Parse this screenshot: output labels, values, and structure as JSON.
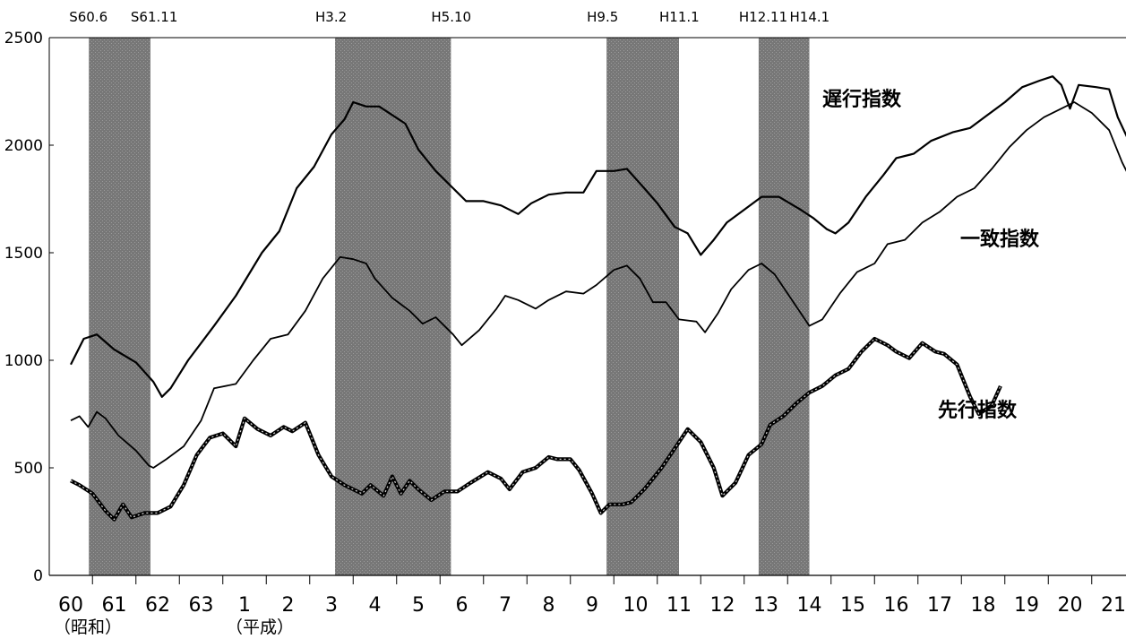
{
  "chart_data": {
    "type": "line",
    "y_ticks": [
      "0",
      "500",
      "1000",
      "1500",
      "2000",
      "2500"
    ],
    "ylim": [
      0,
      2500
    ],
    "x_ticks": [
      "60",
      "61",
      "62",
      "63",
      "1",
      "2",
      "3",
      "4",
      "5",
      "6",
      "7",
      "8",
      "9",
      "10",
      "11",
      "12",
      "13",
      "14",
      "15",
      "16",
      "17",
      "18",
      "19",
      "20",
      "21"
    ],
    "era_labels": [
      "（昭和）",
      "（平成）"
    ],
    "recessions": [
      {
        "start": "S60.6",
        "end": "S61.11"
      },
      {
        "start": "H3.2",
        "end": "H5.10"
      },
      {
        "start": "H9.5",
        "end": "H11.1"
      },
      {
        "start": "H12.11",
        "end": "H14.1"
      }
    ],
    "grid": false,
    "series": [
      {
        "name": "遅行指数",
        "points": [
          [
            1985.0,
            980
          ],
          [
            1985.3,
            1100
          ],
          [
            1985.6,
            1120
          ],
          [
            1986.0,
            1050
          ],
          [
            1986.5,
            990
          ],
          [
            1986.9,
            900
          ],
          [
            1987.1,
            830
          ],
          [
            1987.3,
            870
          ],
          [
            1987.7,
            1000
          ],
          [
            1988.3,
            1160
          ],
          [
            1988.8,
            1300
          ],
          [
            1989.4,
            1500
          ],
          [
            1989.8,
            1600
          ],
          [
            1990.2,
            1800
          ],
          [
            1990.6,
            1900
          ],
          [
            1991.0,
            2050
          ],
          [
            1991.3,
            2120
          ],
          [
            1991.5,
            2200
          ],
          [
            1991.8,
            2180
          ],
          [
            1992.1,
            2180
          ],
          [
            1992.7,
            2100
          ],
          [
            1993.0,
            1980
          ],
          [
            1993.4,
            1880
          ],
          [
            1993.8,
            1800
          ],
          [
            1994.1,
            1740
          ],
          [
            1994.5,
            1740
          ],
          [
            1994.9,
            1720
          ],
          [
            1995.3,
            1680
          ],
          [
            1995.6,
            1730
          ],
          [
            1996.0,
            1770
          ],
          [
            1996.4,
            1780
          ],
          [
            1996.8,
            1780
          ],
          [
            1997.1,
            1880
          ],
          [
            1997.5,
            1880
          ],
          [
            1997.8,
            1890
          ],
          [
            1998.2,
            1800
          ],
          [
            1998.5,
            1730
          ],
          [
            1998.9,
            1620
          ],
          [
            1999.2,
            1590
          ],
          [
            1999.5,
            1490
          ],
          [
            1999.8,
            1560
          ],
          [
            2000.1,
            1640
          ],
          [
            2000.5,
            1700
          ],
          [
            2000.9,
            1760
          ],
          [
            2001.3,
            1760
          ],
          [
            2001.8,
            1700
          ],
          [
            2002.1,
            1660
          ],
          [
            2002.4,
            1610
          ],
          [
            2002.6,
            1590
          ],
          [
            2002.9,
            1640
          ],
          [
            2003.3,
            1760
          ],
          [
            2003.7,
            1860
          ],
          [
            2004.0,
            1940
          ],
          [
            2004.4,
            1960
          ],
          [
            2004.8,
            2020
          ],
          [
            2005.3,
            2060
          ],
          [
            2005.7,
            2080
          ],
          [
            2006.1,
            2140
          ],
          [
            2006.5,
            2200
          ],
          [
            2006.9,
            2270
          ],
          [
            2007.3,
            2300
          ],
          [
            2007.6,
            2320
          ],
          [
            2007.8,
            2280
          ],
          [
            2008.0,
            2170
          ],
          [
            2008.2,
            2280
          ],
          [
            2008.6,
            2270
          ],
          [
            2008.9,
            2260
          ],
          [
            2009.1,
            2130
          ],
          [
            2009.4,
            2000
          ],
          [
            2009.6,
            1940
          ],
          [
            2009.9,
            1970
          ]
        ]
      },
      {
        "name": "一致指数",
        "points": [
          [
            1985.0,
            720
          ],
          [
            1985.2,
            740
          ],
          [
            1985.4,
            690
          ],
          [
            1985.6,
            760
          ],
          [
            1985.8,
            730
          ],
          [
            1986.1,
            650
          ],
          [
            1986.5,
            580
          ],
          [
            1986.8,
            510
          ],
          [
            1986.9,
            500
          ],
          [
            1987.2,
            540
          ],
          [
            1987.6,
            600
          ],
          [
            1988.0,
            720
          ],
          [
            1988.3,
            870
          ],
          [
            1988.8,
            890
          ],
          [
            1989.2,
            1000
          ],
          [
            1989.6,
            1100
          ],
          [
            1990.0,
            1120
          ],
          [
            1990.4,
            1230
          ],
          [
            1990.8,
            1380
          ],
          [
            1991.2,
            1480
          ],
          [
            1991.5,
            1470
          ],
          [
            1991.8,
            1450
          ],
          [
            1992.0,
            1380
          ],
          [
            1992.4,
            1290
          ],
          [
            1992.8,
            1230
          ],
          [
            1993.1,
            1170
          ],
          [
            1993.4,
            1200
          ],
          [
            1993.8,
            1120
          ],
          [
            1994.0,
            1070
          ],
          [
            1994.4,
            1140
          ],
          [
            1994.8,
            1240
          ],
          [
            1995.0,
            1300
          ],
          [
            1995.3,
            1280
          ],
          [
            1995.7,
            1240
          ],
          [
            1996.0,
            1280
          ],
          [
            1996.4,
            1320
          ],
          [
            1996.8,
            1310
          ],
          [
            1997.1,
            1350
          ],
          [
            1997.5,
            1420
          ],
          [
            1997.8,
            1440
          ],
          [
            1998.1,
            1380
          ],
          [
            1998.4,
            1270
          ],
          [
            1998.7,
            1270
          ],
          [
            1999.0,
            1190
          ],
          [
            1999.4,
            1180
          ],
          [
            1999.6,
            1130
          ],
          [
            1999.9,
            1220
          ],
          [
            2000.2,
            1330
          ],
          [
            2000.6,
            1420
          ],
          [
            2000.9,
            1450
          ],
          [
            2001.2,
            1400
          ],
          [
            2001.6,
            1280
          ],
          [
            2002.0,
            1160
          ],
          [
            2002.3,
            1190
          ],
          [
            2002.7,
            1310
          ],
          [
            2003.1,
            1410
          ],
          [
            2003.5,
            1450
          ],
          [
            2003.8,
            1540
          ],
          [
            2004.2,
            1560
          ],
          [
            2004.6,
            1640
          ],
          [
            2005.0,
            1690
          ],
          [
            2005.4,
            1760
          ],
          [
            2005.8,
            1800
          ],
          [
            2006.2,
            1890
          ],
          [
            2006.6,
            1990
          ],
          [
            2007.0,
            2070
          ],
          [
            2007.4,
            2130
          ],
          [
            2007.8,
            2170
          ],
          [
            2008.1,
            2200
          ],
          [
            2008.5,
            2150
          ],
          [
            2008.9,
            2070
          ],
          [
            2009.2,
            1920
          ],
          [
            2009.4,
            1840
          ],
          [
            2009.7,
            1880
          ],
          [
            2009.9,
            1980
          ]
        ]
      },
      {
        "name": "先行指数",
        "points": [
          [
            1985.0,
            440
          ],
          [
            1985.2,
            420
          ],
          [
            1985.5,
            380
          ],
          [
            1985.8,
            300
          ],
          [
            1986.0,
            260
          ],
          [
            1986.2,
            330
          ],
          [
            1986.4,
            270
          ],
          [
            1986.7,
            290
          ],
          [
            1987.0,
            290
          ],
          [
            1987.3,
            320
          ],
          [
            1987.6,
            420
          ],
          [
            1987.9,
            560
          ],
          [
            1988.2,
            640
          ],
          [
            1988.5,
            660
          ],
          [
            1988.8,
            600
          ],
          [
            1989.0,
            730
          ],
          [
            1989.3,
            680
          ],
          [
            1989.6,
            650
          ],
          [
            1989.9,
            690
          ],
          [
            1990.1,
            670
          ],
          [
            1990.4,
            710
          ],
          [
            1990.7,
            560
          ],
          [
            1991.0,
            460
          ],
          [
            1991.3,
            420
          ],
          [
            1991.7,
            380
          ],
          [
            1991.9,
            420
          ],
          [
            1992.2,
            370
          ],
          [
            1992.4,
            460
          ],
          [
            1992.6,
            380
          ],
          [
            1992.8,
            440
          ],
          [
            1993.0,
            400
          ],
          [
            1993.3,
            350
          ],
          [
            1993.6,
            390
          ],
          [
            1993.9,
            390
          ],
          [
            1994.2,
            430
          ],
          [
            1994.6,
            480
          ],
          [
            1994.9,
            450
          ],
          [
            1995.1,
            400
          ],
          [
            1995.4,
            480
          ],
          [
            1995.7,
            500
          ],
          [
            1996.0,
            550
          ],
          [
            1996.2,
            540
          ],
          [
            1996.5,
            540
          ],
          [
            1996.7,
            490
          ],
          [
            1997.0,
            380
          ],
          [
            1997.2,
            290
          ],
          [
            1997.4,
            330
          ],
          [
            1997.7,
            330
          ],
          [
            1997.9,
            340
          ],
          [
            1998.2,
            400
          ],
          [
            1998.6,
            500
          ],
          [
            1998.9,
            590
          ],
          [
            1999.2,
            680
          ],
          [
            1999.5,
            620
          ],
          [
            1999.8,
            500
          ],
          [
            2000.0,
            370
          ],
          [
            2000.3,
            430
          ],
          [
            2000.6,
            560
          ],
          [
            2000.9,
            610
          ],
          [
            2001.1,
            700
          ],
          [
            2001.4,
            740
          ],
          [
            2001.7,
            800
          ],
          [
            2002.0,
            850
          ],
          [
            2002.3,
            880
          ],
          [
            2002.6,
            930
          ],
          [
            2002.9,
            960
          ],
          [
            2003.2,
            1040
          ],
          [
            2003.5,
            1100
          ],
          [
            2003.8,
            1070
          ],
          [
            2004.0,
            1040
          ],
          [
            2004.3,
            1010
          ],
          [
            2004.6,
            1080
          ],
          [
            2004.9,
            1040
          ],
          [
            2005.1,
            1030
          ],
          [
            2005.4,
            980
          ],
          [
            2005.7,
            830
          ],
          [
            2005.9,
            750
          ],
          [
            2006.2,
            790
          ],
          [
            2006.4,
            880
          ]
        ]
      }
    ]
  }
}
